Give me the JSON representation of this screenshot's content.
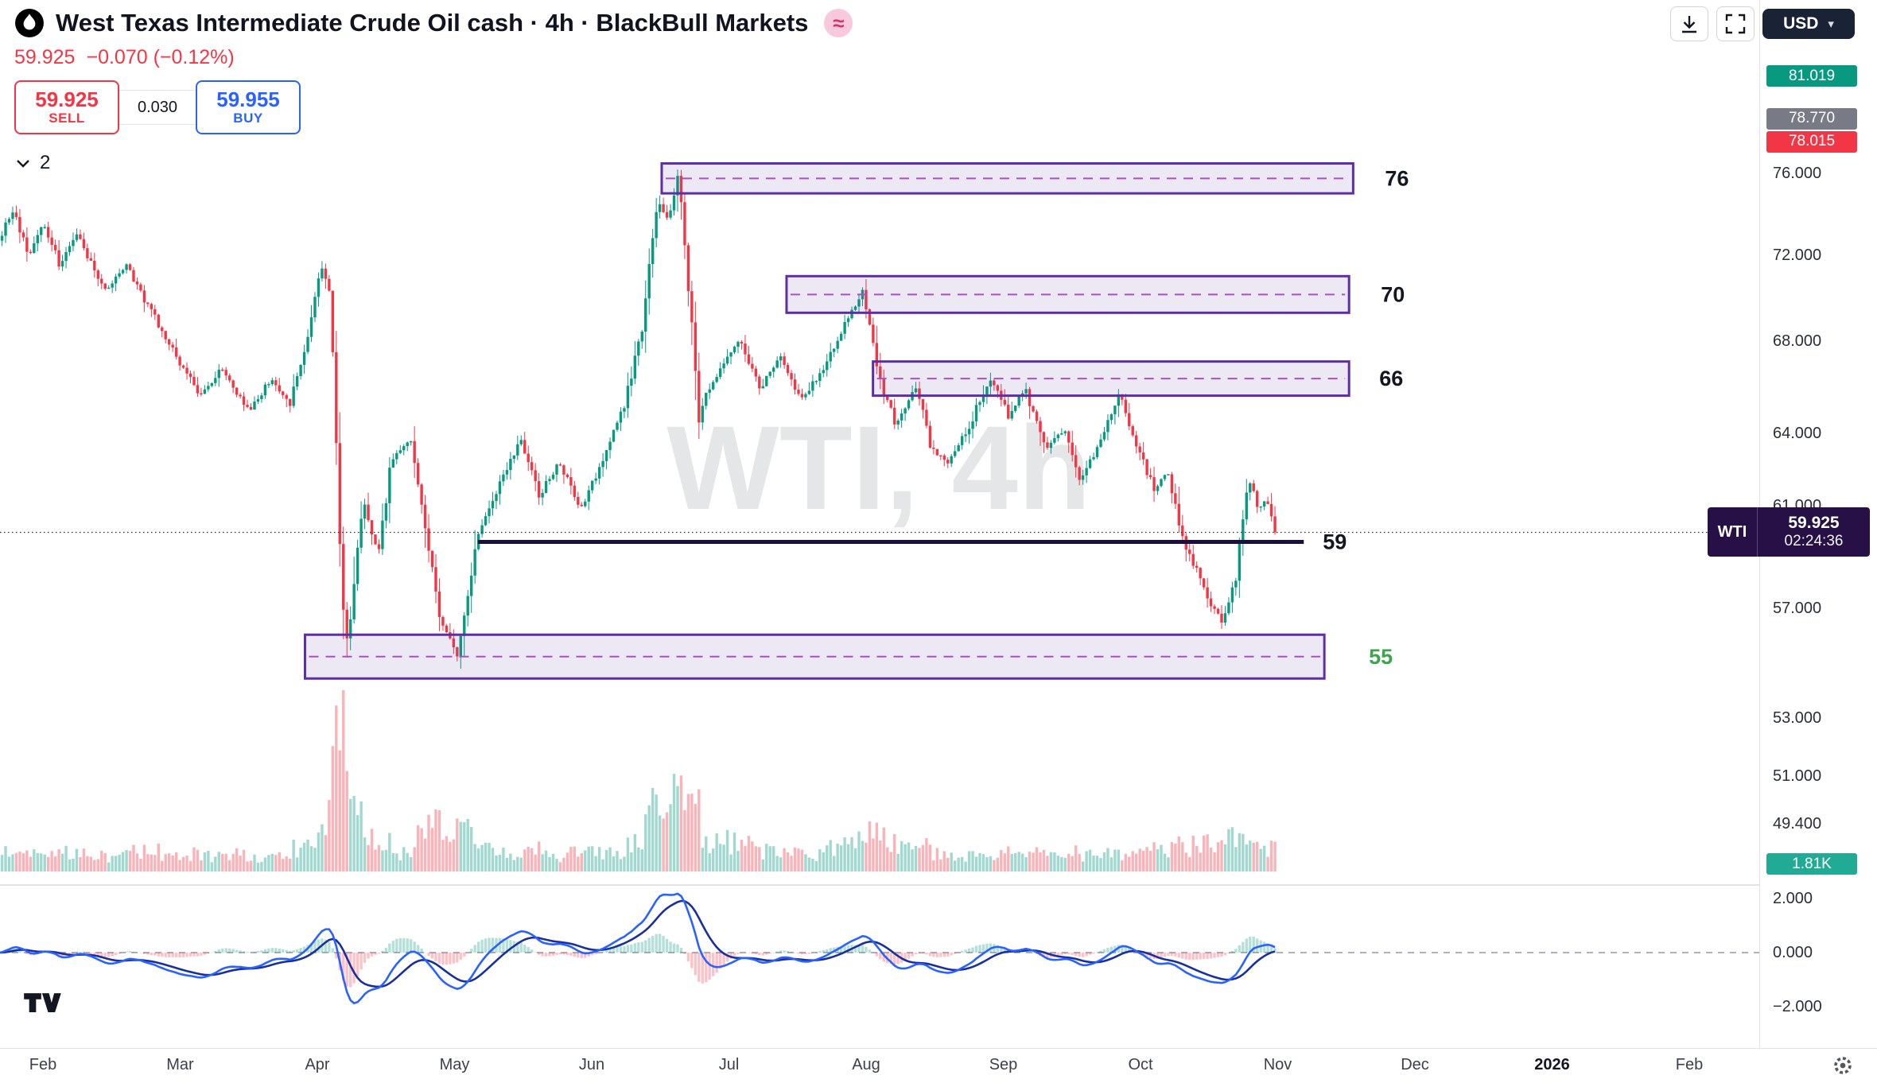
{
  "header": {
    "title": "West Texas Intermediate Crude Oil cash · 4h · BlackBull Markets",
    "delayed_badge": "≈",
    "last_price": "59.925",
    "change": "−0.070 (−0.12%)",
    "sell_price": "59.925",
    "sell_label": "SELL",
    "spread": "0.030",
    "buy_price": "59.955",
    "buy_label": "BUY",
    "objects_count": "2"
  },
  "toolbar": {
    "currency": "USD",
    "caret": "▾"
  },
  "watermark": "WTI, 4h",
  "axis": {
    "price_ticks": [
      {
        "label": "76.000",
        "price": 76
      },
      {
        "label": "72.000",
        "price": 72
      },
      {
        "label": "68.000",
        "price": 68
      },
      {
        "label": "64.000",
        "price": 64
      },
      {
        "label": "61.000",
        "price": 61
      },
      {
        "label": "57.000",
        "price": 57
      },
      {
        "label": "53.000",
        "price": 53
      },
      {
        "label": "51.000",
        "price": 51
      },
      {
        "label": "49.400",
        "price": 49.4
      }
    ],
    "markers": [
      {
        "label": "81.019",
        "price": 81.019,
        "color": "#089981"
      },
      {
        "label": "78.770",
        "price": 78.77,
        "color": "#787b86"
      },
      {
        "label": "78.015",
        "price": 78.015,
        "color": "#f23645"
      }
    ],
    "volume_marker": {
      "label": "1.81K",
      "color": "#22ab94"
    },
    "osc_ticks": [
      {
        "label": "2.000",
        "value": 2
      },
      {
        "label": "0.000",
        "value": 0
      },
      {
        "label": "−2.000",
        "value": -2
      }
    ],
    "price_badge": {
      "symbol": "WTI",
      "price": "59.925",
      "countdown": "02:24:36"
    }
  },
  "time_axis": {
    "ticks": [
      {
        "label": "Feb",
        "m": 0
      },
      {
        "label": "Mar",
        "m": 1
      },
      {
        "label": "Apr",
        "m": 2
      },
      {
        "label": "May",
        "m": 3
      },
      {
        "label": "Jun",
        "m": 4
      },
      {
        "label": "Jul",
        "m": 5
      },
      {
        "label": "Aug",
        "m": 6
      },
      {
        "label": "Sep",
        "m": 7
      },
      {
        "label": "Oct",
        "m": 8
      },
      {
        "label": "Nov",
        "m": 9
      },
      {
        "label": "Dec",
        "m": 10
      },
      {
        "label": "2026",
        "m": 11,
        "bold": true
      },
      {
        "label": "Feb",
        "m": 12
      }
    ]
  },
  "chart_data": {
    "type": "candlestick",
    "symbol": "WTI",
    "timeframe": "4h",
    "price_scale": "log",
    "current_price": 59.925,
    "session_countdown": "02:24:36",
    "ylim_main": [
      49.4,
      81.5
    ],
    "ylim_oscillator": [
      -2.5,
      2.5
    ],
    "visible_months": [
      "Feb",
      "Mar",
      "Apr",
      "May",
      "Jun",
      "Jul",
      "Aug",
      "Sep",
      "Oct",
      "Nov"
    ],
    "price_path": [
      [
        -0.35,
        72.3
      ],
      [
        -0.22,
        74.2
      ],
      [
        -0.1,
        72.0
      ],
      [
        0.0,
        73.6
      ],
      [
        0.12,
        71.6
      ],
      [
        0.25,
        73.0
      ],
      [
        0.45,
        70.2
      ],
      [
        0.6,
        71.6
      ],
      [
        0.8,
        69.2
      ],
      [
        1.0,
        67.0
      ],
      [
        1.15,
        65.6
      ],
      [
        1.3,
        66.8
      ],
      [
        1.5,
        64.9
      ],
      [
        1.66,
        66.3
      ],
      [
        1.8,
        65.2
      ],
      [
        1.92,
        68.0
      ],
      [
        2.02,
        71.6
      ],
      [
        2.1,
        69.8
      ],
      [
        2.17,
        58.0
      ],
      [
        2.22,
        55.8
      ],
      [
        2.34,
        61.2
      ],
      [
        2.44,
        59.0
      ],
      [
        2.54,
        62.8
      ],
      [
        2.68,
        63.8
      ],
      [
        2.8,
        59.6
      ],
      [
        2.9,
        56.6
      ],
      [
        3.02,
        55.2
      ],
      [
        3.16,
        59.6
      ],
      [
        3.32,
        61.8
      ],
      [
        3.48,
        63.7
      ],
      [
        3.62,
        61.4
      ],
      [
        3.76,
        62.8
      ],
      [
        3.92,
        60.9
      ],
      [
        4.08,
        62.8
      ],
      [
        4.24,
        65.2
      ],
      [
        4.38,
        69.0
      ],
      [
        4.48,
        74.8
      ],
      [
        4.56,
        73.6
      ],
      [
        4.63,
        76.2
      ],
      [
        4.7,
        71.0
      ],
      [
        4.78,
        64.9
      ],
      [
        4.94,
        66.9
      ],
      [
        5.08,
        68.0
      ],
      [
        5.22,
        65.9
      ],
      [
        5.38,
        67.3
      ],
      [
        5.52,
        65.5
      ],
      [
        5.68,
        66.6
      ],
      [
        5.84,
        68.7
      ],
      [
        5.98,
        70.3
      ],
      [
        6.08,
        66.5
      ],
      [
        6.22,
        64.3
      ],
      [
        6.36,
        66.0
      ],
      [
        6.48,
        63.3
      ],
      [
        6.6,
        62.7
      ],
      [
        6.76,
        64.4
      ],
      [
        6.9,
        66.4
      ],
      [
        7.04,
        64.7
      ],
      [
        7.16,
        65.9
      ],
      [
        7.3,
        63.3
      ],
      [
        7.44,
        64.2
      ],
      [
        7.56,
        62.0
      ],
      [
        7.7,
        63.5
      ],
      [
        7.84,
        65.7
      ],
      [
        7.98,
        63.3
      ],
      [
        8.1,
        61.7
      ],
      [
        8.2,
        62.3
      ],
      [
        8.32,
        59.2
      ],
      [
        8.42,
        58.5
      ],
      [
        8.52,
        57.0
      ],
      [
        8.6,
        56.4
      ],
      [
        8.7,
        58.2
      ],
      [
        8.78,
        62.2
      ],
      [
        8.86,
        60.9
      ],
      [
        8.92,
        61.3
      ],
      [
        8.98,
        59.925
      ]
    ],
    "zones": [
      {
        "label": "76",
        "price_top": 76.5,
        "price_bottom": 75.0,
        "m1": 4.51,
        "m2": 9.55,
        "label_color": "#131722",
        "label_dx": 40
      },
      {
        "label": "70",
        "price_top": 71.0,
        "price_bottom": 69.3,
        "m1": 5.42,
        "m2": 9.52,
        "label_color": "#131722",
        "label_dx": 40
      },
      {
        "label": "66",
        "price_top": 67.1,
        "price_bottom": 65.6,
        "m1": 6.05,
        "m2": 9.52,
        "label_color": "#131722",
        "label_dx": 38
      },
      {
        "label": "55",
        "price_top": 56.0,
        "price_bottom": 54.4,
        "m1": 1.91,
        "m2": 9.34,
        "label_color": "#3fa34d",
        "label_dx": 56
      }
    ],
    "level_line": {
      "label": "59",
      "price": 59.55,
      "m1": 3.17,
      "m2": 9.19
    },
    "candles": 360,
    "end_m": 8.98,
    "seed": 11,
    "volume_spikes": [
      {
        "m": 2.2,
        "w": 0.16,
        "k": 7
      },
      {
        "m": 2.95,
        "w": 0.2,
        "k": 3.2
      },
      {
        "m": 4.55,
        "w": 0.14,
        "k": 6
      },
      {
        "m": 4.95,
        "w": 0.3,
        "k": 1.6
      },
      {
        "m": 6.05,
        "w": 0.3,
        "k": 1.5
      },
      {
        "m": 8.55,
        "w": 0.3,
        "k": 1.5
      }
    ],
    "colors": {
      "up": "#089981",
      "down": "#f23645",
      "vol_up": "rgba(8,153,129,0.38)",
      "vol_down": "rgba(242,54,69,0.38)",
      "zone_border": "#5d2ea6",
      "zone_fill": "rgba(109,77,170,0.13)",
      "zone_dash": "#a84fc9",
      "level": "#1a0f3e",
      "price_line": "#2a2e39",
      "osc_fast": "#2962ff",
      "osc_slow": "#1a2f9e",
      "hist_up": "rgba(8,153,129,0.3)",
      "hist_down": "rgba(242,54,69,0.3)"
    }
  }
}
